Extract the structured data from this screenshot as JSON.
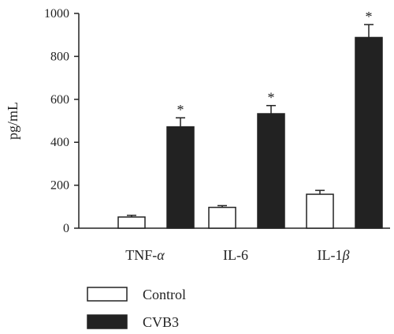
{
  "chart_data": {
    "type": "bar",
    "categories": [
      "TNF-α",
      "IL-6",
      "IL-1β"
    ],
    "category_labels": [
      {
        "base": "TNF-",
        "italic": "α"
      },
      {
        "base": "IL-6",
        "italic": ""
      },
      {
        "base": "IL-1",
        "italic": "β"
      }
    ],
    "series": [
      {
        "name": "Control",
        "values": [
          52,
          97,
          158
        ],
        "errors": [
          8,
          8,
          18
        ],
        "color": "#ffffff",
        "stroke": "#222222"
      },
      {
        "name": "CVB3",
        "values": [
          472,
          533,
          888
        ],
        "errors": [
          42,
          38,
          60
        ],
        "color": "#222222",
        "stroke": "#222222"
      }
    ],
    "annotations": [
      "*",
      "*",
      "*"
    ],
    "ylabel": "pg/mL",
    "xlabel": "",
    "ylim": [
      0,
      1000
    ],
    "yticks": [
      0,
      200,
      400,
      600,
      800,
      1000
    ],
    "grid": false,
    "legend_position": "bottom-left"
  }
}
